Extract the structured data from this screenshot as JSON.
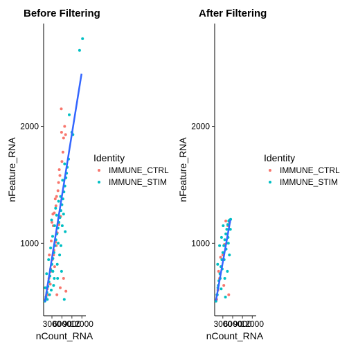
{
  "chart_data": [
    {
      "type": "scatter",
      "title": "Before Filtering",
      "xlabel": "nCount_RNA",
      "ylabel": "nFeature_RNA",
      "xticks": [
        3000,
        6000,
        9000,
        12000
      ],
      "xtick_labels": [
        "3000",
        "6000",
        "9000",
        "12000"
      ],
      "yticks": [
        1000,
        2000
      ],
      "ytick_labels": [
        "1000",
        "2000"
      ],
      "xlim": [
        500,
        13200
      ],
      "ylim": [
        380,
        2880
      ],
      "legend": {
        "title": "Identity",
        "position": "right"
      },
      "series": [
        {
          "name": "IMMUNE_CTRL",
          "color": "#F8766D",
          "points": [
            [
              1100,
              520
            ],
            [
              1600,
              610
            ],
            [
              2100,
              700
            ],
            [
              2600,
              780
            ],
            [
              3100,
              860
            ],
            [
              3600,
              940
            ],
            [
              4100,
              1010
            ],
            [
              4600,
              1090
            ],
            [
              5100,
              1160
            ],
            [
              5600,
              1230
            ],
            [
              2200,
              900
            ],
            [
              2800,
              1020
            ],
            [
              3400,
              1150
            ],
            [
              4200,
              1320
            ],
            [
              4800,
              1450
            ],
            [
              5400,
              1580
            ],
            [
              6000,
              1700
            ],
            [
              6300,
              1780
            ],
            [
              6500,
              1900
            ],
            [
              6800,
              2000
            ],
            [
              5800,
              2150
            ],
            [
              5900,
              1950
            ],
            [
              7100,
              1930
            ],
            [
              5200,
              1630
            ],
            [
              4000,
              1380
            ],
            [
              3300,
              1250
            ],
            [
              2500,
              650
            ],
            [
              3800,
              800
            ],
            [
              4500,
              560
            ],
            [
              5500,
              620
            ],
            [
              6500,
              700
            ],
            [
              7200,
              590
            ],
            [
              1800,
              560
            ],
            [
              3000,
              1180
            ],
            [
              3700,
              1260
            ],
            [
              4400,
              1400
            ],
            [
              5000,
              1520
            ],
            [
              2700,
              760
            ],
            [
              3500,
              900
            ],
            [
              4300,
              980
            ]
          ]
        },
        {
          "name": "IMMUNE_STIM",
          "color": "#00BFC4",
          "points": [
            [
              900,
              505
            ],
            [
              1200,
              540
            ],
            [
              1500,
              580
            ],
            [
              1800,
              630
            ],
            [
              2100,
              670
            ],
            [
              2400,
              720
            ],
            [
              2700,
              770
            ],
            [
              3000,
              820
            ],
            [
              3300,
              870
            ],
            [
              3600,
              920
            ],
            [
              3900,
              980
            ],
            [
              4200,
              1030
            ],
            [
              4500,
              1080
            ],
            [
              4800,
              1130
            ],
            [
              5100,
              1180
            ],
            [
              5400,
              1220
            ],
            [
              5700,
              1280
            ],
            [
              6000,
              1330
            ],
            [
              6300,
              1380
            ],
            [
              6600,
              1440
            ],
            [
              6900,
              1490
            ],
            [
              7200,
              1560
            ],
            [
              7600,
              1650
            ],
            [
              8000,
              1720
            ],
            [
              7400,
              1600
            ],
            [
              6800,
              1680
            ],
            [
              6200,
              1540
            ],
            [
              5600,
              1400
            ],
            [
              5000,
              1360
            ],
            [
              4400,
              1240
            ],
            [
              3800,
              1150
            ],
            [
              3200,
              1060
            ],
            [
              2600,
              960
            ],
            [
              2000,
              860
            ],
            [
              1400,
              740
            ],
            [
              1000,
              620
            ],
            [
              2300,
              560
            ],
            [
              3500,
              640
            ],
            [
              4700,
              700
            ],
            [
              5900,
              760
            ],
            [
              6700,
              520
            ],
            [
              5300,
              900
            ],
            [
              4100,
              1300
            ],
            [
              2900,
              1200
            ],
            [
              8200,
              2100
            ],
            [
              9000,
              1950
            ],
            [
              9300,
              1930
            ],
            [
              11300,
              2650
            ],
            [
              12200,
              2750
            ],
            [
              6500,
              1250
            ],
            [
              7000,
              1100
            ],
            [
              5700,
              980
            ],
            [
              4600,
              820
            ],
            [
              3700,
              700
            ],
            [
              2800,
              600
            ],
            [
              1600,
              520
            ],
            [
              3300,
              760
            ],
            [
              4900,
              1000
            ],
            [
              6100,
              1150
            ]
          ]
        }
      ],
      "trend_line": {
        "color": "#3366FF",
        "from": [
          900,
          500
        ],
        "to": [
          11900,
          2450
        ]
      }
    },
    {
      "type": "scatter",
      "title": "After Filtering",
      "xlabel": "nCount_RNA",
      "ylabel": "nFeature_RNA",
      "xticks": [
        3000,
        6000,
        9000,
        12000
      ],
      "xtick_labels": [
        "3000",
        "6000",
        "9000",
        "12000"
      ],
      "yticks": [
        1000,
        2000
      ],
      "ytick_labels": [
        "1000",
        "2000"
      ],
      "xlim": [
        500,
        13200
      ],
      "ylim": [
        380,
        2880
      ],
      "legend": {
        "title": "Identity",
        "position": "right"
      },
      "series": [
        {
          "name": "IMMUNE_CTRL",
          "color": "#F8766D",
          "points": [
            [
              1100,
              520
            ],
            [
              1500,
              600
            ],
            [
              2000,
              700
            ],
            [
              2500,
              800
            ],
            [
              3000,
              900
            ],
            [
              3500,
              990
            ],
            [
              4000,
              1080
            ],
            [
              4500,
              1150
            ],
            [
              5000,
              1180
            ],
            [
              3900,
              1190
            ],
            [
              4800,
              560
            ],
            [
              3300,
              640
            ],
            [
              2300,
              880
            ],
            [
              1700,
              760
            ],
            [
              4200,
              1000
            ]
          ]
        },
        {
          "name": "IMMUNE_STIM",
          "color": "#00BFC4",
          "points": [
            [
              900,
              505
            ],
            [
              1200,
              560
            ],
            [
              1500,
              620
            ],
            [
              1800,
              680
            ],
            [
              2100,
              740
            ],
            [
              2400,
              800
            ],
            [
              2700,
              860
            ],
            [
              3000,
              920
            ],
            [
              3300,
              980
            ],
            [
              3600,
              1030
            ],
            [
              3900,
              1080
            ],
            [
              4200,
              1120
            ],
            [
              4500,
              1160
            ],
            [
              4800,
              1190
            ],
            [
              5100,
              1200
            ],
            [
              5400,
              1205
            ],
            [
              4600,
              1050
            ],
            [
              4000,
              950
            ],
            [
              3400,
              860
            ],
            [
              2800,
              780
            ],
            [
              2200,
              700
            ],
            [
              1600,
              640
            ],
            [
              1300,
              560
            ],
            [
              2500,
              610
            ],
            [
              3600,
              700
            ],
            [
              4400,
              760
            ],
            [
              5000,
              900
            ],
            [
              4700,
              1000
            ],
            [
              3100,
              1150
            ],
            [
              2600,
              1050
            ],
            [
              2000,
              980
            ],
            [
              1400,
              820
            ],
            [
              3800,
              540
            ],
            [
              5300,
              1120
            ]
          ]
        }
      ],
      "trend_line": {
        "color": "#3366FF",
        "from": [
          900,
          510
        ],
        "to": [
          5300,
          1200
        ]
      }
    }
  ]
}
